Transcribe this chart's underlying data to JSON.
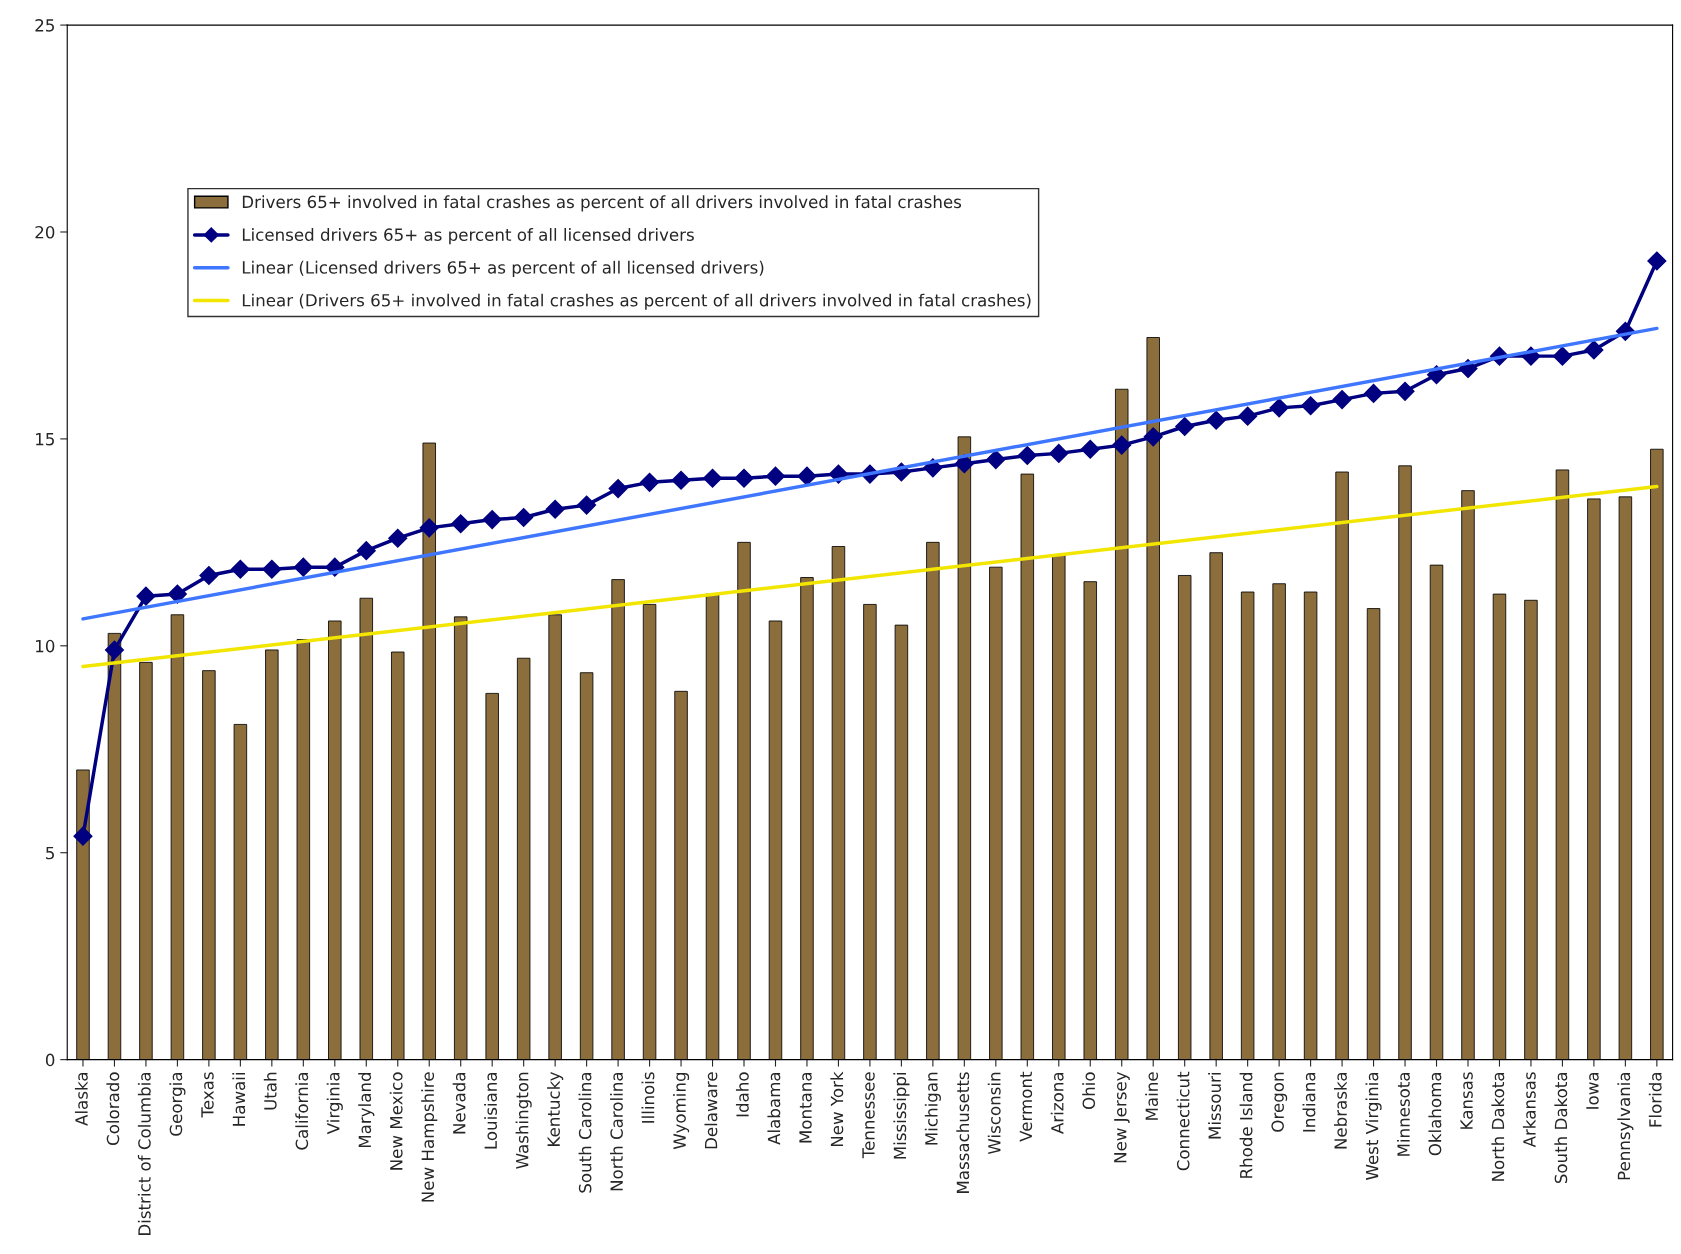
{
  "chart_data": {
    "type": "bar",
    "categories": [
      "Alaska",
      "Colorado",
      "District of Columbia",
      "Georgia",
      "Texas",
      "Hawaii",
      "Utah",
      "California",
      "Virginia",
      "Maryland",
      "New Mexico",
      "New Hampshire",
      "Nevada",
      "Louisiana",
      "Washington",
      "Kentucky",
      "South Carolina",
      "North Carolina",
      "Illinois",
      "Wyoming",
      "Delaware",
      "Idaho",
      "Alabama",
      "Montana",
      "New York",
      "Tennessee",
      "Mississippi",
      "Michigan",
      "Massachusetts",
      "Wisconsin",
      "Vermont",
      "Arizona",
      "Ohio",
      "New Jersey",
      "Maine",
      "Connecticut",
      "Missouri",
      "Rhode Island",
      "Oregon",
      "Indiana",
      "Nebraska",
      "West Virginia",
      "Minnesota",
      "Oklahoma",
      "Kansas",
      "North Dakota",
      "Arkansas",
      "South Dakota",
      "Iowa",
      "Pennsylvania",
      "Florida"
    ],
    "series": [
      {
        "name": "Drivers 65+ involved in fatal crashes as percent of all drivers involved in fatal crashes",
        "color": "#8c6d3c",
        "values": [
          7.0,
          10.3,
          9.6,
          10.75,
          9.4,
          8.1,
          9.9,
          10.15,
          10.6,
          11.15,
          9.85,
          14.9,
          10.7,
          8.85,
          9.7,
          10.75,
          9.35,
          11.6,
          11.0,
          8.9,
          11.25,
          12.5,
          10.6,
          11.65,
          12.4,
          11.0,
          10.5,
          12.5,
          15.05,
          11.9,
          14.15,
          12.2,
          11.55,
          16.2,
          17.45,
          11.7,
          12.25,
          11.3,
          11.5,
          11.3,
          14.2,
          10.9,
          14.35,
          11.95,
          13.75,
          11.25,
          11.1,
          14.25,
          13.55,
          13.6,
          14.75
        ]
      },
      {
        "name": "Licensed drivers 65+ as percent of all licensed drivers",
        "type": "line",
        "color": "#000080",
        "marker": "diamond",
        "values": [
          5.4,
          9.9,
          11.2,
          11.25,
          11.7,
          11.85,
          11.85,
          11.9,
          11.9,
          12.3,
          12.6,
          12.85,
          12.95,
          13.05,
          13.1,
          13.3,
          13.4,
          13.8,
          13.95,
          14.0,
          14.05,
          14.05,
          14.1,
          14.1,
          14.15,
          14.15,
          14.2,
          14.3,
          14.4,
          14.5,
          14.6,
          14.65,
          14.75,
          14.85,
          15.05,
          15.3,
          15.45,
          15.55,
          15.75,
          15.8,
          15.95,
          16.1,
          16.15,
          16.55,
          16.7,
          17.0,
          17.0,
          17.0,
          17.15,
          17.6,
          19.3
        ]
      },
      {
        "name": "Linear (Licensed drivers 65+ as percent of all licensed drivers)",
        "type": "line",
        "color": "#3f76ff",
        "marker": "none",
        "x": [
          "Alaska",
          "Florida"
        ],
        "values": [
          10.65,
          17.67
        ]
      },
      {
        "name": "Linear (Drivers 65+ involved in fatal crashes as percent of all drivers involved in fatal crashes)",
        "type": "line",
        "color": "#f2e600",
        "marker": "none",
        "x": [
          "Alaska",
          "Florida"
        ],
        "values": [
          9.5,
          13.85
        ]
      }
    ],
    "ylim": [
      0,
      25
    ],
    "yticks": [
      0,
      5,
      10,
      15,
      20,
      25
    ],
    "grid": false,
    "legend": "top left"
  }
}
